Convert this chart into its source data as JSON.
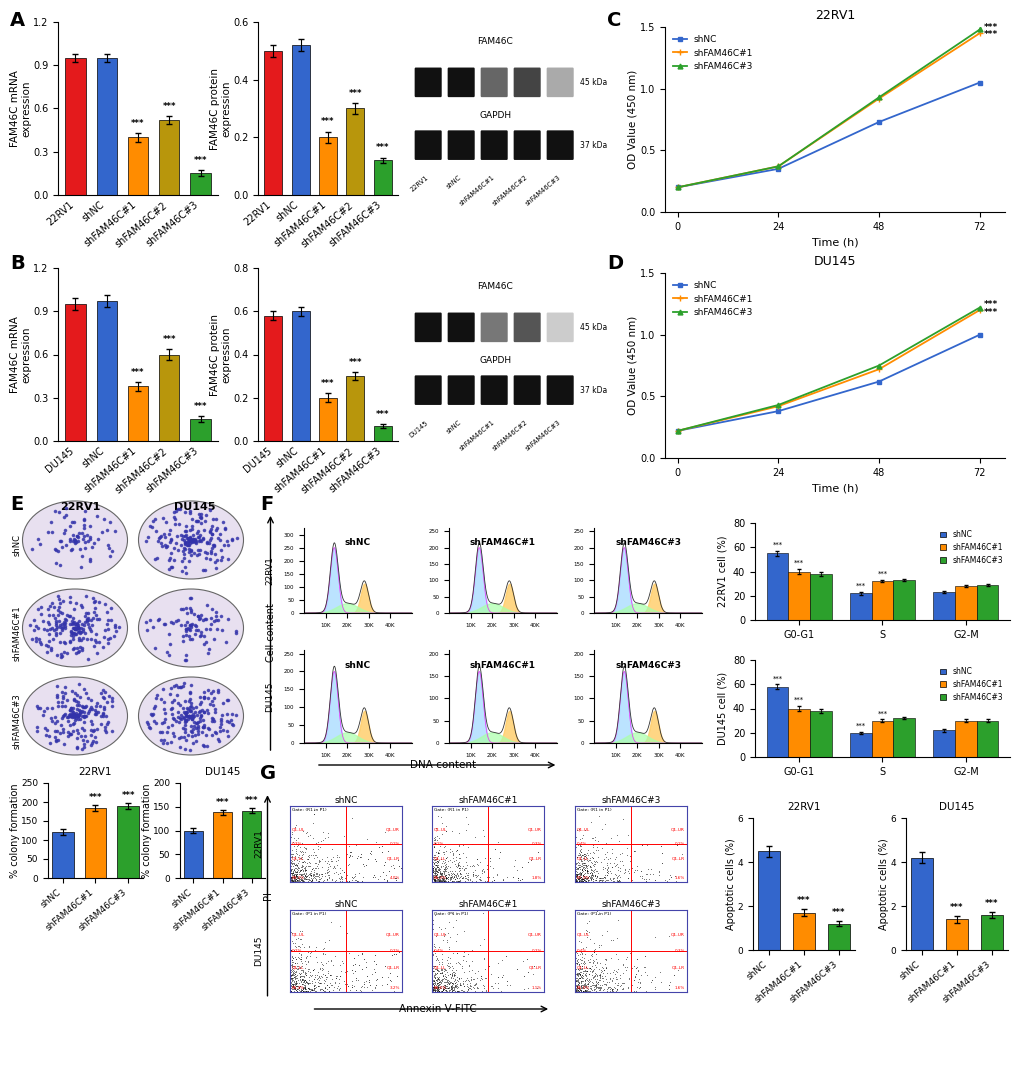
{
  "panel_A_mRNA": {
    "categories": [
      "22RV1",
      "shNC",
      "shFAM46C#1",
      "shFAM46C#2",
      "shFAM46C#3"
    ],
    "values": [
      0.95,
      0.95,
      0.4,
      0.52,
      0.15
    ],
    "errors": [
      0.03,
      0.03,
      0.03,
      0.03,
      0.02
    ],
    "colors": [
      "#e41a1c",
      "#3366cc",
      "#ff8c00",
      "#b8960c",
      "#2ca02c"
    ],
    "ylabel": "FAM46C mRNA\nexpression",
    "ylim": [
      0,
      1.2
    ],
    "yticks": [
      0.0,
      0.3,
      0.6,
      0.9,
      1.2
    ],
    "sig": [
      false,
      false,
      true,
      true,
      true
    ]
  },
  "panel_A_protein": {
    "categories": [
      "22RV1",
      "shNC",
      "shFAM46C#1",
      "shFAM46C#2",
      "shFAM46C#3"
    ],
    "values": [
      0.5,
      0.52,
      0.2,
      0.3,
      0.12
    ],
    "errors": [
      0.02,
      0.02,
      0.02,
      0.02,
      0.01
    ],
    "colors": [
      "#e41a1c",
      "#3366cc",
      "#ff8c00",
      "#b8960c",
      "#2ca02c"
    ],
    "ylabel": "FAM46C protein\nexpression",
    "ylim": [
      0,
      0.6
    ],
    "yticks": [
      0.0,
      0.2,
      0.4,
      0.6
    ],
    "sig": [
      false,
      false,
      true,
      true,
      true
    ]
  },
  "panel_B_mRNA": {
    "categories": [
      "DU145",
      "shNC",
      "shFAM46C#1",
      "shFAM46C#2",
      "shFAM46C#3"
    ],
    "values": [
      0.95,
      0.97,
      0.38,
      0.6,
      0.15
    ],
    "errors": [
      0.04,
      0.04,
      0.03,
      0.04,
      0.02
    ],
    "colors": [
      "#e41a1c",
      "#3366cc",
      "#ff8c00",
      "#b8960c",
      "#2ca02c"
    ],
    "ylabel": "FAM46C mRNA\nexpression",
    "ylim": [
      0,
      1.2
    ],
    "yticks": [
      0.0,
      0.3,
      0.6,
      0.9,
      1.2
    ],
    "sig": [
      false,
      false,
      true,
      true,
      true
    ]
  },
  "panel_B_protein": {
    "categories": [
      "DU145",
      "shNC",
      "shFAM46C#1",
      "shFAM46C#2",
      "shFAM46C#3"
    ],
    "values": [
      0.58,
      0.6,
      0.2,
      0.3,
      0.07
    ],
    "errors": [
      0.02,
      0.02,
      0.02,
      0.02,
      0.01
    ],
    "colors": [
      "#e41a1c",
      "#3366cc",
      "#ff8c00",
      "#b8960c",
      "#2ca02c"
    ],
    "ylabel": "FAM46C protein\nexpression",
    "ylim": [
      0,
      0.8
    ],
    "yticks": [
      0.0,
      0.2,
      0.4,
      0.6,
      0.8
    ],
    "sig": [
      false,
      false,
      true,
      true,
      true
    ]
  },
  "panel_C": {
    "title": "22RV1",
    "time": [
      0,
      24,
      48,
      72
    ],
    "shNC": [
      0.2,
      0.35,
      0.73,
      1.05
    ],
    "shFAM46C1": [
      0.2,
      0.37,
      0.92,
      1.45
    ],
    "shFAM46C3": [
      0.2,
      0.37,
      0.93,
      1.48
    ],
    "xlabel": "Time (h)",
    "ylabel": "OD Value (450 nm)",
    "ylim": [
      0.0,
      1.5
    ],
    "yticks": [
      0.0,
      0.5,
      1.0,
      1.5
    ]
  },
  "panel_D": {
    "title": "DU145",
    "time": [
      0,
      24,
      48,
      72
    ],
    "shNC": [
      0.22,
      0.38,
      0.62,
      1.0
    ],
    "shFAM46C1": [
      0.22,
      0.42,
      0.72,
      1.2
    ],
    "shFAM46C3": [
      0.22,
      0.43,
      0.75,
      1.22
    ],
    "xlabel": "Time (h)",
    "ylabel": "OD Value (450 nm)",
    "ylim": [
      0.0,
      1.5
    ],
    "yticks": [
      0.0,
      0.5,
      1.0,
      1.5
    ]
  },
  "panel_E_22RV1": {
    "categories": [
      "shNC",
      "shFAM46C#1",
      "shFAM46C#3"
    ],
    "values": [
      120,
      185,
      190
    ],
    "errors": [
      8,
      8,
      8
    ],
    "colors": [
      "#3366cc",
      "#ff8c00",
      "#2ca02c"
    ],
    "ylabel": "% colony formation",
    "title": "22RV1",
    "ylim": [
      0,
      250
    ],
    "yticks": [
      0,
      50,
      100,
      150,
      200,
      250
    ],
    "sig": [
      false,
      true,
      true
    ]
  },
  "panel_E_DU145": {
    "categories": [
      "shNC",
      "shFAM46C#1",
      "shFAM46C#3"
    ],
    "values": [
      100,
      138,
      142
    ],
    "errors": [
      6,
      6,
      6
    ],
    "colors": [
      "#3366cc",
      "#ff8c00",
      "#2ca02c"
    ],
    "ylabel": "% colony formation",
    "title": "DU145",
    "ylim": [
      0,
      200
    ],
    "yticks": [
      0,
      50,
      100,
      150,
      200
    ],
    "sig": [
      false,
      true,
      true
    ]
  },
  "panel_F_22RV1": {
    "categories": [
      "G0-G1",
      "S",
      "G2-M"
    ],
    "shNC": [
      55,
      22,
      23
    ],
    "shFAM46C1": [
      40,
      32,
      28
    ],
    "shFAM46C3": [
      38,
      33,
      29
    ],
    "shNC_err": [
      2,
      1,
      1
    ],
    "shFAM46C1_err": [
      2,
      1,
      1
    ],
    "shFAM46C3_err": [
      2,
      1,
      1
    ],
    "ylabel": "22RV1 cell (%)",
    "ylim": [
      0,
      80
    ],
    "yticks": [
      0,
      20,
      40,
      60,
      80
    ],
    "sig_G0": true,
    "sig_S": true,
    "sig_G2": false
  },
  "panel_F_DU145": {
    "categories": [
      "G0-G1",
      "S",
      "G2-M"
    ],
    "shNC": [
      58,
      20,
      22
    ],
    "shFAM46C1": [
      40,
      30,
      30
    ],
    "shFAM46C3": [
      38,
      32,
      30
    ],
    "shNC_err": [
      2,
      1,
      1
    ],
    "shFAM46C1_err": [
      2,
      1,
      1
    ],
    "shFAM46C3_err": [
      2,
      1,
      1
    ],
    "ylabel": "DU145 cell (%)",
    "ylim": [
      0,
      80
    ],
    "yticks": [
      0,
      20,
      40,
      60,
      80
    ],
    "sig_G0": true,
    "sig_S": true,
    "sig_G2": false
  },
  "panel_G_22RV1": {
    "categories": [
      "shNC",
      "shFAM46C#1",
      "shFAM46C#3"
    ],
    "values": [
      4.5,
      1.7,
      1.2
    ],
    "errors": [
      0.25,
      0.15,
      0.12
    ],
    "colors": [
      "#3366cc",
      "#ff8c00",
      "#2ca02c"
    ],
    "ylabel": "Apoptotic cells (%)",
    "title": "22RV1",
    "ylim": [
      0,
      6
    ],
    "yticks": [
      0,
      2,
      4,
      6
    ],
    "sig": [
      false,
      true,
      true
    ]
  },
  "panel_G_DU145": {
    "categories": [
      "shNC",
      "shFAM46C#1",
      "shFAM46C#3"
    ],
    "values": [
      4.2,
      1.4,
      1.6
    ],
    "errors": [
      0.25,
      0.15,
      0.15
    ],
    "colors": [
      "#3366cc",
      "#ff8c00",
      "#2ca02c"
    ],
    "ylabel": "Apoptotic cells (%)",
    "title": "DU145",
    "ylim": [
      0,
      6
    ],
    "yticks": [
      0,
      2,
      4,
      6
    ],
    "sig": [
      false,
      true,
      true
    ]
  },
  "line_colors": {
    "shNC": "#3366cc",
    "shFAM46C1": "#ff8c00",
    "shFAM46C3": "#2ca02c"
  },
  "wb_labels_A": [
    "22RV1",
    "shNC",
    "shFAM46C#1",
    "shFAM46C#2",
    "shFAM46C#3"
  ],
  "wb_labels_B": [
    "DU145",
    "shNC",
    "shFAM46C#1",
    "shFAM46C#2",
    "shFAM46C#3"
  ],
  "flow_col_labels": [
    "shNC",
    "shFAM46C#1",
    "shFAM46C#3"
  ],
  "flow_row_labels_F": [
    "22RV1",
    "DU145"
  ],
  "flow_row_labels_G": [
    "22RV1",
    "DU145"
  ]
}
